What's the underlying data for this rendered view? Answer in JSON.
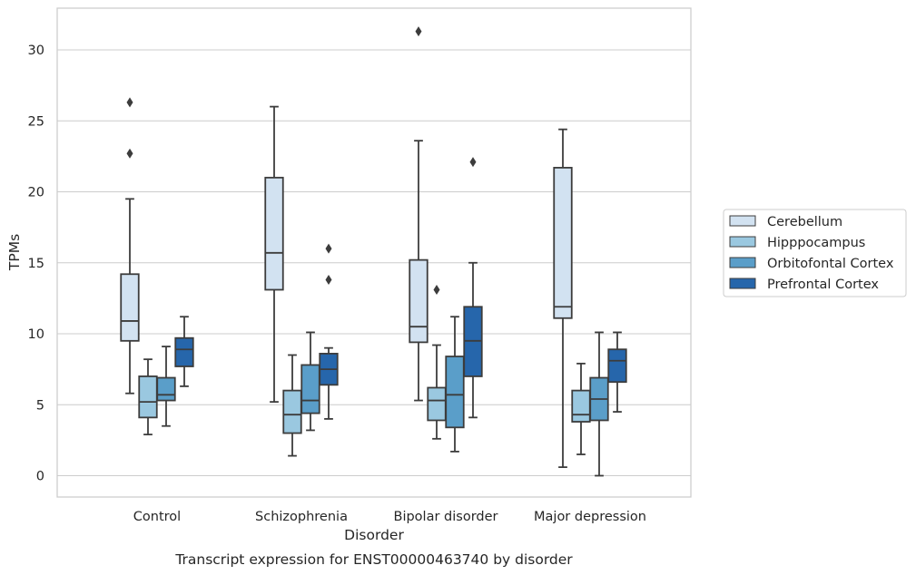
{
  "chart_data": {
    "type": "box",
    "caption": "Transcript expression for ENST00000463740 by disorder",
    "xlabel": "Disorder",
    "ylabel": "TPMs",
    "ylim": [
      -1.5,
      33
    ],
    "yticks": [
      0,
      5,
      10,
      15,
      20,
      25,
      30
    ],
    "grid": true,
    "legend_position": "right",
    "categories": [
      "Control",
      "Schizophrenia",
      "Bipolar disorder",
      "Major depression"
    ],
    "series": [
      {
        "name": "Cerebellum",
        "color": "#d2e2f1",
        "boxes": [
          {
            "whisker_low": 5.8,
            "q1": 9.5,
            "median": 10.9,
            "q3": 14.2,
            "whisker_high": 19.5,
            "outliers": [
              22.7,
              26.3
            ]
          },
          {
            "whisker_low": 5.2,
            "q1": 13.1,
            "median": 15.7,
            "q3": 21.0,
            "whisker_high": 26.0,
            "outliers": []
          },
          {
            "whisker_low": 5.3,
            "q1": 9.4,
            "median": 10.5,
            "q3": 15.2,
            "whisker_high": 23.6,
            "outliers": [
              31.3
            ]
          },
          {
            "whisker_low": 0.6,
            "q1": 11.1,
            "median": 11.9,
            "q3": 21.7,
            "whisker_high": 24.4,
            "outliers": []
          }
        ]
      },
      {
        "name": "Hipppocampus",
        "color": "#9ac8e0",
        "boxes": [
          {
            "whisker_low": 2.9,
            "q1": 4.1,
            "median": 5.2,
            "q3": 7.0,
            "whisker_high": 8.2,
            "outliers": []
          },
          {
            "whisker_low": 1.4,
            "q1": 3.0,
            "median": 4.3,
            "q3": 6.0,
            "whisker_high": 8.5,
            "outliers": []
          },
          {
            "whisker_low": 2.6,
            "q1": 3.9,
            "median": 5.3,
            "q3": 6.2,
            "whisker_high": 9.2,
            "outliers": [
              13.1
            ]
          },
          {
            "whisker_low": 1.5,
            "q1": 3.8,
            "median": 4.3,
            "q3": 6.0,
            "whisker_high": 7.9,
            "outliers": []
          }
        ]
      },
      {
        "name": "Orbitofontal Cortex",
        "color": "#5a9ec9",
        "boxes": [
          {
            "whisker_low": 3.5,
            "q1": 5.3,
            "median": 5.7,
            "q3": 6.9,
            "whisker_high": 9.1,
            "outliers": []
          },
          {
            "whisker_low": 3.2,
            "q1": 4.4,
            "median": 5.3,
            "q3": 7.8,
            "whisker_high": 10.1,
            "outliers": []
          },
          {
            "whisker_low": 1.7,
            "q1": 3.4,
            "median": 5.7,
            "q3": 8.4,
            "whisker_high": 11.2,
            "outliers": []
          },
          {
            "whisker_low": 0.0,
            "q1": 3.9,
            "median": 5.4,
            "q3": 6.9,
            "whisker_high": 10.1,
            "outliers": []
          }
        ]
      },
      {
        "name": "Prefrontal Cortex",
        "color": "#2666ab",
        "boxes": [
          {
            "whisker_low": 6.3,
            "q1": 7.7,
            "median": 8.9,
            "q3": 9.7,
            "whisker_high": 11.2,
            "outliers": []
          },
          {
            "whisker_low": 4.0,
            "q1": 6.4,
            "median": 7.5,
            "q3": 8.6,
            "whisker_high": 9.0,
            "outliers": [
              13.8,
              16.0
            ]
          },
          {
            "whisker_low": 4.1,
            "q1": 7.0,
            "median": 9.5,
            "q3": 11.9,
            "whisker_high": 15.0,
            "outliers": [
              22.1
            ]
          },
          {
            "whisker_low": 4.5,
            "q1": 6.6,
            "median": 8.1,
            "q3": 8.9,
            "whisker_high": 10.1,
            "outliers": []
          }
        ]
      }
    ]
  }
}
